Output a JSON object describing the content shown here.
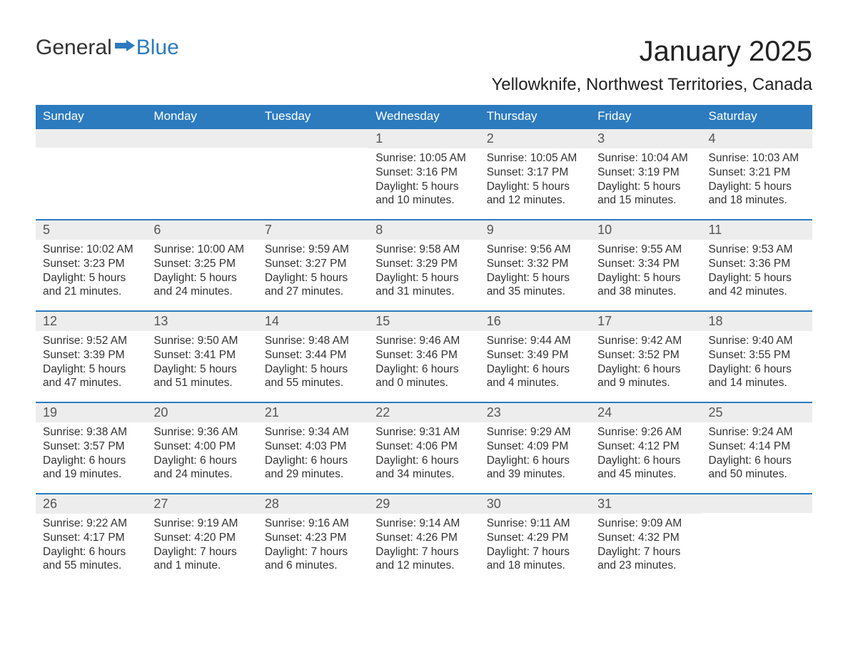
{
  "logo": {
    "text1": "General",
    "text2": "Blue"
  },
  "title": "January 2025",
  "location": "Yellowknife, Northwest Territories, Canada",
  "colors": {
    "header_bg": "#2c7bbf",
    "header_text": "#ffffff",
    "daynum_bg": "#ededed",
    "daynum_border": "#2c7bbf",
    "body_text": "#333333"
  },
  "typography": {
    "title_fontsize": 40,
    "location_fontsize": 24,
    "header_fontsize": 17,
    "cell_fontsize": 15.5
  },
  "daysOfWeek": [
    "Sunday",
    "Monday",
    "Tuesday",
    "Wednesday",
    "Thursday",
    "Friday",
    "Saturday"
  ],
  "weeks": [
    [
      null,
      null,
      null,
      {
        "n": "1",
        "sr": "Sunrise: 10:05 AM",
        "ss": "Sunset: 3:16 PM",
        "d1": "Daylight: 5 hours",
        "d2": "and 10 minutes."
      },
      {
        "n": "2",
        "sr": "Sunrise: 10:05 AM",
        "ss": "Sunset: 3:17 PM",
        "d1": "Daylight: 5 hours",
        "d2": "and 12 minutes."
      },
      {
        "n": "3",
        "sr": "Sunrise: 10:04 AM",
        "ss": "Sunset: 3:19 PM",
        "d1": "Daylight: 5 hours",
        "d2": "and 15 minutes."
      },
      {
        "n": "4",
        "sr": "Sunrise: 10:03 AM",
        "ss": "Sunset: 3:21 PM",
        "d1": "Daylight: 5 hours",
        "d2": "and 18 minutes."
      }
    ],
    [
      {
        "n": "5",
        "sr": "Sunrise: 10:02 AM",
        "ss": "Sunset: 3:23 PM",
        "d1": "Daylight: 5 hours",
        "d2": "and 21 minutes."
      },
      {
        "n": "6",
        "sr": "Sunrise: 10:00 AM",
        "ss": "Sunset: 3:25 PM",
        "d1": "Daylight: 5 hours",
        "d2": "and 24 minutes."
      },
      {
        "n": "7",
        "sr": "Sunrise: 9:59 AM",
        "ss": "Sunset: 3:27 PM",
        "d1": "Daylight: 5 hours",
        "d2": "and 27 minutes."
      },
      {
        "n": "8",
        "sr": "Sunrise: 9:58 AM",
        "ss": "Sunset: 3:29 PM",
        "d1": "Daylight: 5 hours",
        "d2": "and 31 minutes."
      },
      {
        "n": "9",
        "sr": "Sunrise: 9:56 AM",
        "ss": "Sunset: 3:32 PM",
        "d1": "Daylight: 5 hours",
        "d2": "and 35 minutes."
      },
      {
        "n": "10",
        "sr": "Sunrise: 9:55 AM",
        "ss": "Sunset: 3:34 PM",
        "d1": "Daylight: 5 hours",
        "d2": "and 38 minutes."
      },
      {
        "n": "11",
        "sr": "Sunrise: 9:53 AM",
        "ss": "Sunset: 3:36 PM",
        "d1": "Daylight: 5 hours",
        "d2": "and 42 minutes."
      }
    ],
    [
      {
        "n": "12",
        "sr": "Sunrise: 9:52 AM",
        "ss": "Sunset: 3:39 PM",
        "d1": "Daylight: 5 hours",
        "d2": "and 47 minutes."
      },
      {
        "n": "13",
        "sr": "Sunrise: 9:50 AM",
        "ss": "Sunset: 3:41 PM",
        "d1": "Daylight: 5 hours",
        "d2": "and 51 minutes."
      },
      {
        "n": "14",
        "sr": "Sunrise: 9:48 AM",
        "ss": "Sunset: 3:44 PM",
        "d1": "Daylight: 5 hours",
        "d2": "and 55 minutes."
      },
      {
        "n": "15",
        "sr": "Sunrise: 9:46 AM",
        "ss": "Sunset: 3:46 PM",
        "d1": "Daylight: 6 hours",
        "d2": "and 0 minutes."
      },
      {
        "n": "16",
        "sr": "Sunrise: 9:44 AM",
        "ss": "Sunset: 3:49 PM",
        "d1": "Daylight: 6 hours",
        "d2": "and 4 minutes."
      },
      {
        "n": "17",
        "sr": "Sunrise: 9:42 AM",
        "ss": "Sunset: 3:52 PM",
        "d1": "Daylight: 6 hours",
        "d2": "and 9 minutes."
      },
      {
        "n": "18",
        "sr": "Sunrise: 9:40 AM",
        "ss": "Sunset: 3:55 PM",
        "d1": "Daylight: 6 hours",
        "d2": "and 14 minutes."
      }
    ],
    [
      {
        "n": "19",
        "sr": "Sunrise: 9:38 AM",
        "ss": "Sunset: 3:57 PM",
        "d1": "Daylight: 6 hours",
        "d2": "and 19 minutes."
      },
      {
        "n": "20",
        "sr": "Sunrise: 9:36 AM",
        "ss": "Sunset: 4:00 PM",
        "d1": "Daylight: 6 hours",
        "d2": "and 24 minutes."
      },
      {
        "n": "21",
        "sr": "Sunrise: 9:34 AM",
        "ss": "Sunset: 4:03 PM",
        "d1": "Daylight: 6 hours",
        "d2": "and 29 minutes."
      },
      {
        "n": "22",
        "sr": "Sunrise: 9:31 AM",
        "ss": "Sunset: 4:06 PM",
        "d1": "Daylight: 6 hours",
        "d2": "and 34 minutes."
      },
      {
        "n": "23",
        "sr": "Sunrise: 9:29 AM",
        "ss": "Sunset: 4:09 PM",
        "d1": "Daylight: 6 hours",
        "d2": "and 39 minutes."
      },
      {
        "n": "24",
        "sr": "Sunrise: 9:26 AM",
        "ss": "Sunset: 4:12 PM",
        "d1": "Daylight: 6 hours",
        "d2": "and 45 minutes."
      },
      {
        "n": "25",
        "sr": "Sunrise: 9:24 AM",
        "ss": "Sunset: 4:14 PM",
        "d1": "Daylight: 6 hours",
        "d2": "and 50 minutes."
      }
    ],
    [
      {
        "n": "26",
        "sr": "Sunrise: 9:22 AM",
        "ss": "Sunset: 4:17 PM",
        "d1": "Daylight: 6 hours",
        "d2": "and 55 minutes."
      },
      {
        "n": "27",
        "sr": "Sunrise: 9:19 AM",
        "ss": "Sunset: 4:20 PM",
        "d1": "Daylight: 7 hours",
        "d2": "and 1 minute."
      },
      {
        "n": "28",
        "sr": "Sunrise: 9:16 AM",
        "ss": "Sunset: 4:23 PM",
        "d1": "Daylight: 7 hours",
        "d2": "and 6 minutes."
      },
      {
        "n": "29",
        "sr": "Sunrise: 9:14 AM",
        "ss": "Sunset: 4:26 PM",
        "d1": "Daylight: 7 hours",
        "d2": "and 12 minutes."
      },
      {
        "n": "30",
        "sr": "Sunrise: 9:11 AM",
        "ss": "Sunset: 4:29 PM",
        "d1": "Daylight: 7 hours",
        "d2": "and 18 minutes."
      },
      {
        "n": "31",
        "sr": "Sunrise: 9:09 AM",
        "ss": "Sunset: 4:32 PM",
        "d1": "Daylight: 7 hours",
        "d2": "and 23 minutes."
      },
      null
    ]
  ]
}
